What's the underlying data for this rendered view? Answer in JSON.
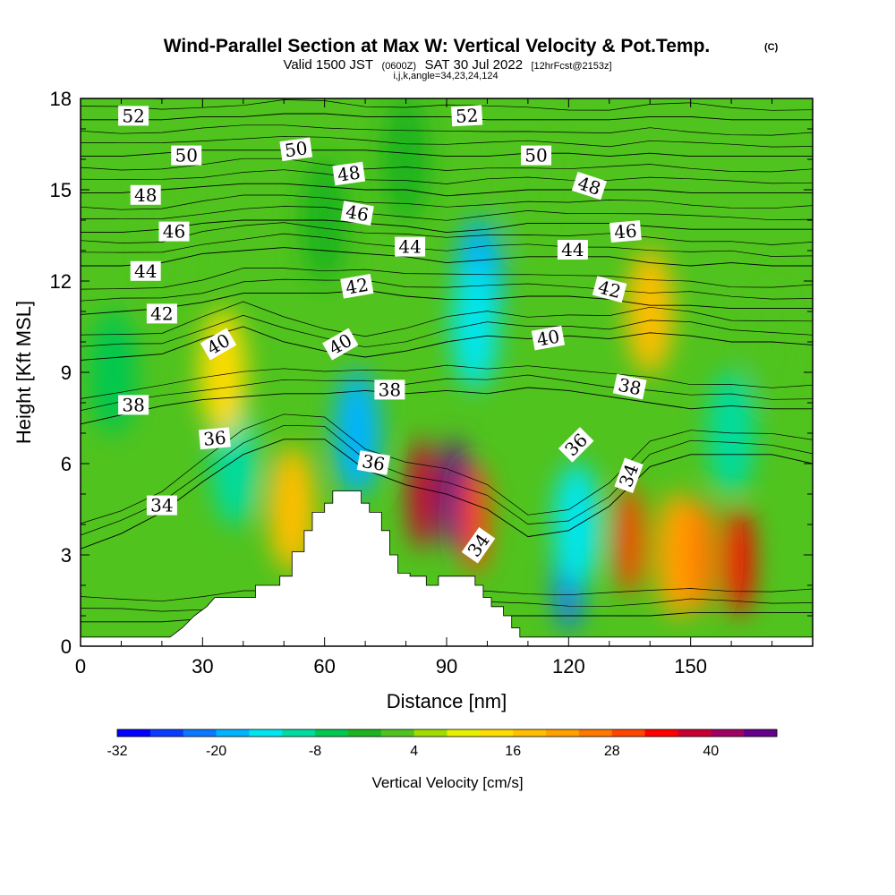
{
  "chart_data": {
    "type": "heatmap",
    "title": "Wind-Parallel Section at Max W: Vertical Velocity & Pot.Temp.",
    "title_mark": "(C)",
    "subtitle_parts": [
      "Valid 1500 JST",
      "(0600Z)",
      "SAT 30 Jul 2022",
      "[12hrFcst@2153z]"
    ],
    "subtitle2": "i,j,k,angle=34,23,24,124",
    "xlabel": "Distance [nm]",
    "ylabel": "Height [Kft MSL]",
    "xlim": [
      0,
      180
    ],
    "ylim": [
      0,
      18
    ],
    "xticks": [
      0,
      30,
      60,
      90,
      120,
      150
    ],
    "yticks": [
      0,
      3,
      6,
      9,
      12,
      15,
      18
    ],
    "colorbar": {
      "label": "Vertical Velocity [cm/s]",
      "ticks": [
        -32,
        -20,
        -8,
        4,
        16,
        28,
        40
      ],
      "min": -32,
      "step": 4,
      "colors": [
        "#0000ff",
        "#0a3cff",
        "#0a78ff",
        "#00b4ff",
        "#00e6f0",
        "#00dca0",
        "#00c850",
        "#1eb41e",
        "#50c31e",
        "#a0dc00",
        "#e6f000",
        "#ffdc00",
        "#ffbe00",
        "#ffa000",
        "#ff7800",
        "#ff4600",
        "#ff0000",
        "#c80032",
        "#a00064",
        "#64008c"
      ]
    },
    "terrain_top_kft": [
      [
        0,
        0.3
      ],
      [
        22,
        0.3
      ],
      [
        25,
        0.6
      ],
      [
        28,
        1.0
      ],
      [
        31,
        1.3
      ],
      [
        33,
        1.6
      ],
      [
        43,
        1.6
      ],
      [
        43,
        2.0
      ],
      [
        49,
        2.0
      ],
      [
        49,
        2.3
      ],
      [
        52,
        2.3
      ],
      [
        52,
        3.1
      ],
      [
        55,
        3.1
      ],
      [
        55,
        3.8
      ],
      [
        57,
        3.8
      ],
      [
        57,
        4.4
      ],
      [
        60,
        4.4
      ],
      [
        60,
        4.7
      ],
      [
        62,
        4.7
      ],
      [
        62,
        5.1
      ],
      [
        69,
        5.1
      ],
      [
        69,
        4.7
      ],
      [
        71,
        4.7
      ],
      [
        71,
        4.4
      ],
      [
        74,
        4.4
      ],
      [
        74,
        3.8
      ],
      [
        76,
        3.8
      ],
      [
        76,
        3.0
      ],
      [
        78,
        3.0
      ],
      [
        78,
        2.4
      ],
      [
        81,
        2.4
      ],
      [
        81,
        2.3
      ],
      [
        85,
        2.3
      ],
      [
        85,
        2.0
      ],
      [
        88,
        2.0
      ],
      [
        88,
        2.3
      ],
      [
        97,
        2.3
      ],
      [
        97,
        2.0
      ],
      [
        99,
        2.0
      ],
      [
        99,
        1.6
      ],
      [
        101,
        1.6
      ],
      [
        101,
        1.3
      ],
      [
        104,
        1.3
      ],
      [
        104,
        1.0
      ],
      [
        106,
        1.0
      ],
      [
        106,
        0.6
      ],
      [
        108,
        0.6
      ],
      [
        108,
        0.3
      ],
      [
        180,
        0.3
      ]
    ],
    "vertical_velocity_cells": [
      {
        "x": 84,
        "y": 5.0,
        "value": 36
      },
      {
        "x": 92,
        "y": 5.0,
        "value": 44
      },
      {
        "x": 97,
        "y": 4.2,
        "value": 28
      },
      {
        "x": 120,
        "y": 2.3,
        "value": -24
      },
      {
        "x": 122,
        "y": 4.0,
        "value": -16
      },
      {
        "x": 135,
        "y": 3.5,
        "value": 28
      },
      {
        "x": 147,
        "y": 3.0,
        "value": 20
      },
      {
        "x": 153,
        "y": 3.0,
        "value": 24
      },
      {
        "x": 162,
        "y": 2.8,
        "value": 32
      },
      {
        "x": 98,
        "y": 12.0,
        "value": -20
      },
      {
        "x": 97,
        "y": 10.5,
        "value": -16
      },
      {
        "x": 68,
        "y": 7.0,
        "value": -20
      },
      {
        "x": 38,
        "y": 6.0,
        "value": -12
      },
      {
        "x": 52,
        "y": 4.5,
        "value": 16
      },
      {
        "x": 140,
        "y": 11.0,
        "value": 16
      },
      {
        "x": 35,
        "y": 9.0,
        "value": 12
      },
      {
        "x": 80,
        "y": 16.0,
        "value": -4
      },
      {
        "x": 60,
        "y": 14.0,
        "value": -4
      },
      {
        "x": 20,
        "y": 13.0,
        "value": 0
      },
      {
        "x": 110,
        "y": 15.0,
        "value": 0
      },
      {
        "x": 170,
        "y": 10.0,
        "value": 0
      },
      {
        "x": 160,
        "y": 7.0,
        "value": -10
      },
      {
        "x": 8,
        "y": 9.0,
        "value": -6
      }
    ],
    "isentropes": [
      {
        "label": "34",
        "y": [
          0.8,
          0.8,
          0.8,
          0.9,
          1.0,
          1.0,
          1.0,
          1.0,
          1.0,
          1.0,
          1.0,
          1.0,
          1.0,
          1.0,
          1.0,
          1.1,
          1.1,
          1.1,
          1.1
        ]
      },
      {
        "label": "36",
        "y": [
          3.2,
          3.7,
          4.4,
          5.4,
          6.3,
          6.8,
          6.8,
          5.8,
          5.3,
          5.0,
          4.5,
          3.6,
          3.8,
          4.6,
          5.9,
          6.3,
          6.3,
          6.3,
          6.0
        ]
      },
      {
        "label": "38",
        "y": [
          7.3,
          7.6,
          7.9,
          8.1,
          8.2,
          8.3,
          8.3,
          8.4,
          8.3,
          8.4,
          8.3,
          8.5,
          8.4,
          8.2,
          8.0,
          7.8,
          7.9,
          7.8,
          7.8
        ]
      },
      {
        "label": "40",
        "y": [
          9.4,
          9.5,
          9.6,
          10.1,
          10.5,
          10.0,
          9.7,
          9.5,
          9.7,
          10.0,
          10.2,
          10.1,
          10.2,
          10.1,
          10.3,
          10.2,
          10.0,
          10.0,
          9.9
        ]
      },
      {
        "label": "42",
        "y": [
          10.9,
          11.0,
          11.1,
          11.3,
          11.6,
          11.6,
          11.6,
          11.7,
          11.5,
          11.4,
          11.4,
          11.5,
          11.5,
          11.4,
          11.2,
          11.2,
          11.1,
          11.1,
          11.1
        ]
      },
      {
        "label": "44",
        "y": [
          12.5,
          12.5,
          12.6,
          12.9,
          13.0,
          13.1,
          13.0,
          12.9,
          12.8,
          12.6,
          12.7,
          12.8,
          12.8,
          12.8,
          12.6,
          12.5,
          12.6,
          12.5,
          12.5
        ]
      },
      {
        "label": "46",
        "y": [
          13.6,
          13.6,
          13.7,
          13.9,
          14.0,
          14.0,
          14.0,
          13.9,
          13.8,
          13.6,
          13.7,
          13.9,
          13.9,
          13.9,
          13.8,
          13.7,
          13.7,
          13.7,
          13.7
        ]
      },
      {
        "label": "48",
        "y": [
          14.9,
          14.9,
          15.0,
          15.1,
          15.2,
          15.2,
          15.1,
          15.0,
          15.0,
          14.8,
          14.9,
          15.0,
          15.0,
          15.0,
          15.0,
          14.9,
          14.9,
          14.9,
          14.9
        ]
      },
      {
        "label": "50",
        "y": [
          16.1,
          16.1,
          16.2,
          16.3,
          16.3,
          16.3,
          16.3,
          16.3,
          16.2,
          16.1,
          16.1,
          16.2,
          16.2,
          16.1,
          16.2,
          16.1,
          16.1,
          16.1,
          16.1
        ]
      },
      {
        "label": "52",
        "y": [
          17.3,
          17.3,
          17.3,
          17.4,
          17.4,
          17.5,
          17.5,
          17.4,
          17.4,
          17.4,
          17.3,
          17.3,
          17.3,
          17.3,
          17.4,
          17.4,
          17.3,
          17.3,
          17.3
        ]
      }
    ],
    "contour_labels": [
      {
        "text": "52",
        "x": 13,
        "y": 17.4,
        "angle": 0
      },
      {
        "text": "52",
        "x": 95,
        "y": 17.4,
        "angle": -3
      },
      {
        "text": "50",
        "x": 26,
        "y": 16.1,
        "angle": 0
      },
      {
        "text": "50",
        "x": 53,
        "y": 16.3,
        "angle": -8
      },
      {
        "text": "50",
        "x": 112,
        "y": 16.1,
        "angle": 0
      },
      {
        "text": "48",
        "x": 16,
        "y": 14.8,
        "angle": 0
      },
      {
        "text": "48",
        "x": 66,
        "y": 15.5,
        "angle": -8
      },
      {
        "text": "48",
        "x": 125,
        "y": 15.1,
        "angle": 18
      },
      {
        "text": "46",
        "x": 23,
        "y": 13.6,
        "angle": 0
      },
      {
        "text": "46",
        "x": 68,
        "y": 14.2,
        "angle": 10
      },
      {
        "text": "46",
        "x": 134,
        "y": 13.6,
        "angle": -5
      },
      {
        "text": "44",
        "x": 16,
        "y": 12.3,
        "angle": 0
      },
      {
        "text": "44",
        "x": 81,
        "y": 13.1,
        "angle": 0
      },
      {
        "text": "44",
        "x": 121,
        "y": 13.0,
        "angle": 0
      },
      {
        "text": "42",
        "x": 20,
        "y": 10.9,
        "angle": 0
      },
      {
        "text": "42",
        "x": 68,
        "y": 11.8,
        "angle": -10
      },
      {
        "text": "42",
        "x": 130,
        "y": 11.7,
        "angle": 15
      },
      {
        "text": "40",
        "x": 34,
        "y": 9.9,
        "angle": -30
      },
      {
        "text": "40",
        "x": 64,
        "y": 9.9,
        "angle": -30
      },
      {
        "text": "40",
        "x": 115,
        "y": 10.1,
        "angle": -10
      },
      {
        "text": "38",
        "x": 13,
        "y": 7.9,
        "angle": 0
      },
      {
        "text": "38",
        "x": 76,
        "y": 8.4,
        "angle": 0
      },
      {
        "text": "38",
        "x": 135,
        "y": 8.5,
        "angle": 12
      },
      {
        "text": "36",
        "x": 33,
        "y": 6.8,
        "angle": -5
      },
      {
        "text": "36",
        "x": 72,
        "y": 6.0,
        "angle": 10
      },
      {
        "text": "36",
        "x": 122,
        "y": 6.6,
        "angle": -45
      },
      {
        "text": "34",
        "x": 20,
        "y": 4.6,
        "angle": 0
      },
      {
        "text": "34",
        "x": 98,
        "y": 3.3,
        "angle": -55
      },
      {
        "text": "34",
        "x": 135,
        "y": 5.6,
        "angle": -70
      }
    ]
  }
}
